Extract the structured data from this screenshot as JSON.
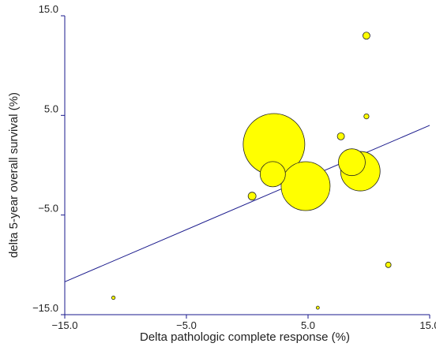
{
  "chart_data": {
    "type": "scatter",
    "xlabel": "Delta pathologic complete response (%)",
    "ylabel": "delta 5-year overall survival (%)",
    "xlim": [
      -15,
      15
    ],
    "ylim": [
      -15,
      15
    ],
    "x_ticks": [
      {
        "value": -15,
        "label": "−15.0"
      },
      {
        "value": -5,
        "label": "−5.0"
      },
      {
        "value": 5,
        "label": "5.0"
      },
      {
        "value": 15,
        "label": "15.0"
      }
    ],
    "y_ticks": [
      {
        "value": 15,
        "label": "15.0"
      },
      {
        "value": 5,
        "label": "5.0"
      },
      {
        "value": -5,
        "label": "−5.0"
      },
      {
        "value": -15,
        "label": "−15.0"
      }
    ],
    "grid": false,
    "points": [
      {
        "x": 2.2,
        "y": 2.1,
        "size": 39
      },
      {
        "x": 4.8,
        "y": -2.1,
        "size": 31
      },
      {
        "x": 9.3,
        "y": -0.6,
        "size": 25
      },
      {
        "x": 8.6,
        "y": 0.3,
        "size": 17
      },
      {
        "x": 2.1,
        "y": -0.9,
        "size": 16
      },
      {
        "x": 0.4,
        "y": -3.1,
        "size": 5
      },
      {
        "x": 7.7,
        "y": 2.9,
        "size": 4.5
      },
      {
        "x": 9.8,
        "y": 13.0,
        "size": 4.5
      },
      {
        "x": 11.6,
        "y": -10.0,
        "size": 3.5
      },
      {
        "x": 9.8,
        "y": 4.9,
        "size": 3.2
      },
      {
        "x": -11.0,
        "y": -13.3,
        "size": 2.2
      },
      {
        "x": 5.8,
        "y": -14.3,
        "size": 2
      }
    ],
    "regression_line": {
      "x": [
        -15,
        15
      ],
      "y": [
        -11.7,
        4.0
      ]
    },
    "colors": {
      "marker_fill": "#ffff00",
      "marker_stroke": "#222222",
      "axis": "#1a1a8c",
      "line": "#1a1a8c"
    }
  }
}
